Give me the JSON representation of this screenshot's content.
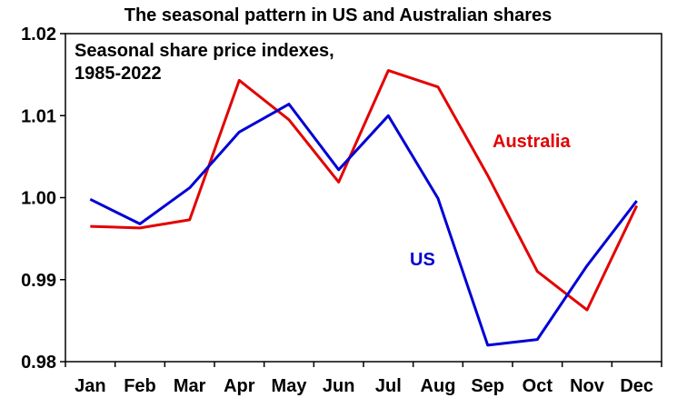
{
  "chart_data": {
    "type": "line",
    "title": "The seasonal pattern in US and Australian shares",
    "subtitle_lines": [
      "Seasonal share price indexes,",
      "1985-2022"
    ],
    "categories": [
      "Jan",
      "Feb",
      "Mar",
      "Apr",
      "May",
      "Jun",
      "Jul",
      "Aug",
      "Sep",
      "Oct",
      "Nov",
      "Dec"
    ],
    "ylim": [
      0.98,
      1.02
    ],
    "yticks": [
      "0.98",
      "0.99",
      "1.00",
      "1.01",
      "1.02"
    ],
    "xlabel": "",
    "ylabel": "",
    "grid": false,
    "series": [
      {
        "name": "Australia",
        "color": "#e30000",
        "values": [
          0.9965,
          0.9963,
          0.9973,
          1.0143,
          1.0095,
          1.0019,
          1.0155,
          1.0135,
          1.0027,
          0.991,
          0.9863,
          0.999
        ]
      },
      {
        "name": "US",
        "color": "#0000d4",
        "values": [
          0.9998,
          0.9968,
          1.0012,
          1.008,
          1.0114,
          1.0034,
          1.01,
          0.9999,
          0.982,
          0.9827,
          0.9917,
          0.9996
        ]
      }
    ]
  }
}
